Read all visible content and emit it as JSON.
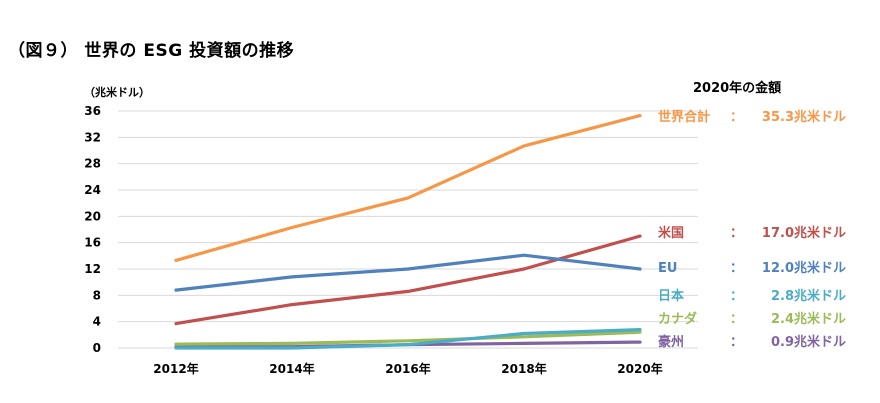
{
  "title": "（図９） 世界の ESG 投資額の推移",
  "unit_label": "（兆米ドル）",
  "legend_heading": "2020年の金額",
  "colors": {
    "世界合計": "#F79646",
    "米国": "#C0504D",
    "EU": "#4F81BD",
    "日本": "#4BACC6",
    "カナダ": "#9BBB59",
    "豪州": "#8064A2",
    "grid": "#D9D9D9"
  },
  "legend_items": [
    {
      "name": "世界合計",
      "sep": "：",
      "value": "35.3",
      "unit": "兆米ドル"
    },
    {
      "name": "米国",
      "sep": "：",
      "value": "17.0",
      "unit": "兆米ドル"
    },
    {
      "name": "EU",
      "sep": "：",
      "value": "12.0",
      "unit": "兆米ドル"
    },
    {
      "name": "日本",
      "sep": "：",
      "value": "2.8",
      "unit": "兆米ドル"
    },
    {
      "name": "カナダ",
      "sep": "：",
      "value": "2.4",
      "unit": "兆米ドル"
    },
    {
      "name": "豪州",
      "sep": "：",
      "value": "0.9",
      "unit": "兆米ドル"
    }
  ],
  "chart_data": {
    "type": "line",
    "title": "（図９） 世界の ESG 投資額の推移",
    "ylabel": "（兆米ドル）",
    "xlabel": "",
    "categories": [
      "2012年",
      "2014年",
      "2016年",
      "2018年",
      "2020年"
    ],
    "ylim": [
      0,
      36
    ],
    "yticks": [
      0,
      4,
      8,
      12,
      16,
      20,
      24,
      28,
      32,
      36
    ],
    "grid": true,
    "legend_placement": "right",
    "series": [
      {
        "name": "世界合計",
        "values": [
          13.3,
          18.3,
          22.8,
          30.7,
          35.3
        ]
      },
      {
        "name": "米国",
        "values": [
          3.7,
          6.6,
          8.6,
          12.0,
          17.0
        ]
      },
      {
        "name": "EU",
        "values": [
          8.8,
          10.8,
          12.0,
          14.1,
          12.0
        ]
      },
      {
        "name": "日本",
        "values": [
          0.0,
          0.0,
          0.5,
          2.2,
          2.8
        ]
      },
      {
        "name": "カナダ",
        "values": [
          0.6,
          0.7,
          1.1,
          1.7,
          2.4
        ]
      },
      {
        "name": "豪州",
        "values": [
          0.2,
          0.2,
          0.5,
          0.7,
          0.9
        ]
      }
    ]
  }
}
